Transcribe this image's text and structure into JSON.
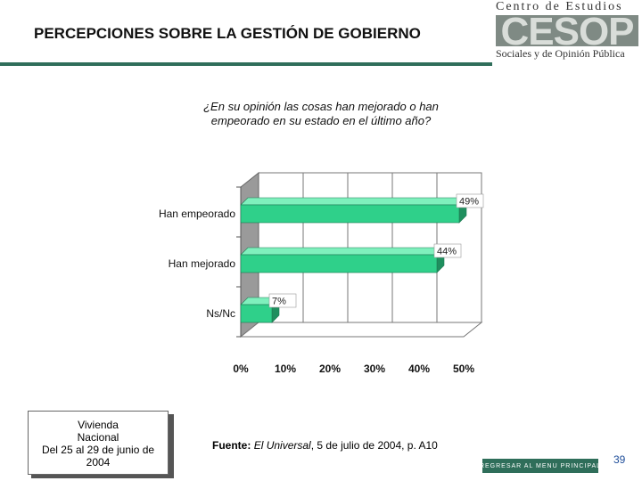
{
  "header": {
    "title": "PERCEPCIONES SOBRE LA GESTIÓN DE GOBIERNO"
  },
  "logo": {
    "top_text": "Centro de Estudios",
    "mark_text": "CESOP",
    "bottom_text": "Sociales y de Opinión Pública"
  },
  "question": "¿En su opinión las cosas han mejorado o han empeorado en su estado en el último año?",
  "chart_data": {
    "type": "bar",
    "orientation": "horizontal",
    "title": "¿En su opinión las cosas han mejorado o han empeorado en su estado en el último año?",
    "categories": [
      "Han empeorado",
      "Han mejorado",
      "Ns/Nc"
    ],
    "values": [
      49,
      44,
      7
    ],
    "value_labels": [
      "49%",
      "44%",
      "7%"
    ],
    "xlim": [
      0,
      50
    ],
    "x_ticks": [
      "0%",
      "10%",
      "20%",
      "30%",
      "40%",
      "50%"
    ],
    "grid": true,
    "bar_color": "#2fd08a"
  },
  "note": {
    "lines": [
      "Vivienda",
      "Nacional",
      "Del 25 al 29 de junio de",
      "2004"
    ]
  },
  "source": {
    "label": "Fuente:",
    "publication": "El Universal",
    "rest": ", 5 de julio de 2004, p. A10"
  },
  "footer": {
    "menu_button": "REGRESAR AL MENU PRINCIPAL",
    "page_number": "39"
  },
  "colors": {
    "accent": "#2f6e5a",
    "bar": "#2fd08a",
    "page_number": "#1f4e9a"
  }
}
